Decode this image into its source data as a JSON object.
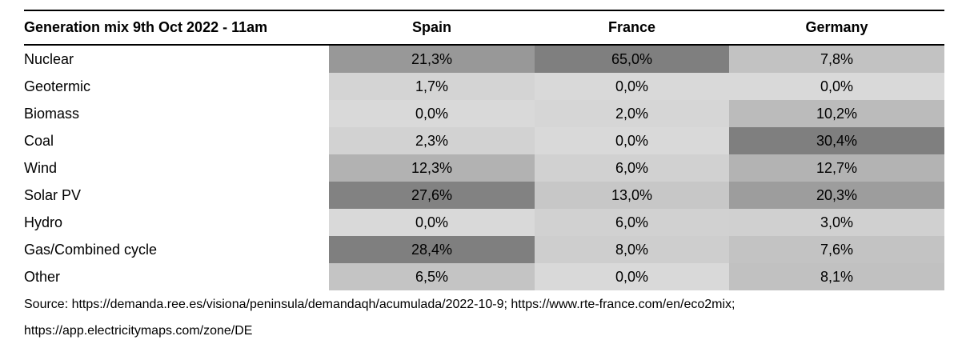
{
  "table": {
    "title": "Generation mix 9th Oct 2022 - 11am",
    "columns": [
      "Spain",
      "France",
      "Germany"
    ],
    "rows": [
      {
        "label": "Nuclear",
        "cells": [
          {
            "text": "21,3%",
            "bg": "#989898"
          },
          {
            "text": "65,0%",
            "bg": "#7F7F7F"
          },
          {
            "text": "7,8%",
            "bg": "#C2C2C2"
          }
        ]
      },
      {
        "label": "Geotermic",
        "cells": [
          {
            "text": "1,7%",
            "bg": "#D4D4D4"
          },
          {
            "text": "0,0%",
            "bg": "#D9D9D9"
          },
          {
            "text": "0,0%",
            "bg": "#D9D9D9"
          }
        ]
      },
      {
        "label": "Biomass",
        "cells": [
          {
            "text": "0,0%",
            "bg": "#D9D9D9"
          },
          {
            "text": "2,0%",
            "bg": "#D6D6D6"
          },
          {
            "text": "10,2%",
            "bg": "#BBBBBB"
          }
        ]
      },
      {
        "label": "Coal",
        "cells": [
          {
            "text": "2,3%",
            "bg": "#D2D2D2"
          },
          {
            "text": "0,0%",
            "bg": "#D9D9D9"
          },
          {
            "text": "30,4%",
            "bg": "#7F7F7F"
          }
        ]
      },
      {
        "label": "Wind",
        "cells": [
          {
            "text": "12,3%",
            "bg": "#B2B2B2"
          },
          {
            "text": "6,0%",
            "bg": "#D1D1D1"
          },
          {
            "text": "12,7%",
            "bg": "#B3B3B3"
          }
        ]
      },
      {
        "label": "Solar PV",
        "cells": [
          {
            "text": "27,6%",
            "bg": "#828282"
          },
          {
            "text": "13,0%",
            "bg": "#C7C7C7"
          },
          {
            "text": "20,3%",
            "bg": "#9D9D9D"
          }
        ]
      },
      {
        "label": "Hydro",
        "cells": [
          {
            "text": "0,0%",
            "bg": "#D9D9D9"
          },
          {
            "text": "6,0%",
            "bg": "#D1D1D1"
          },
          {
            "text": "3,0%",
            "bg": "#D0D0D0"
          }
        ]
      },
      {
        "label": "Gas/Combined cycle",
        "cells": [
          {
            "text": "28,4%",
            "bg": "#7F7F7F"
          },
          {
            "text": "8,0%",
            "bg": "#CECECE"
          },
          {
            "text": "7,6%",
            "bg": "#C3C3C3"
          }
        ]
      },
      {
        "label": "Other",
        "cells": [
          {
            "text": "6,5%",
            "bg": "#C4C4C4"
          },
          {
            "text": "0,0%",
            "bg": "#D9D9D9"
          },
          {
            "text": "8,1%",
            "bg": "#C1C1C1"
          }
        ]
      }
    ]
  },
  "source": {
    "line1": "Source: https://demanda.ree.es/visiona/peninsula/demandaqh/acumulada/2022-10-9; https://www.rte-france.com/en/eco2mix;",
    "line2": "https://app.electricitymaps.com/zone/DE"
  },
  "colors": {
    "heatmap_scale_min": "#D9D9D9",
    "heatmap_scale_max": "#7F7F7F",
    "border": "#000000",
    "background": "#FFFFFF"
  },
  "chart_data": {
    "type": "heatmap",
    "title": "Generation mix 9th Oct 2022 - 11am",
    "categories": [
      "Nuclear",
      "Geotermic",
      "Biomass",
      "Coal",
      "Wind",
      "Solar PV",
      "Hydro",
      "Gas/Combined cycle",
      "Other"
    ],
    "series": [
      {
        "name": "Spain",
        "values": [
          21.3,
          1.7,
          0.0,
          2.3,
          12.3,
          27.6,
          0.0,
          28.4,
          6.5
        ]
      },
      {
        "name": "France",
        "values": [
          65.0,
          0.0,
          2.0,
          0.0,
          6.0,
          13.0,
          6.0,
          8.0,
          0.0
        ]
      },
      {
        "name": "Germany",
        "values": [
          7.8,
          0.0,
          10.2,
          30.4,
          12.7,
          20.3,
          3.0,
          7.6,
          8.1
        ]
      }
    ],
    "unit": "%",
    "value_format": "comma-decimal",
    "color_scale": {
      "min_color": "#D9D9D9",
      "max_color": "#7F7F7F",
      "scope": "per-column",
      "min_value": 0
    },
    "legend": "none",
    "annotations": [
      "Source: https://demanda.ree.es/visiona/peninsula/demandaqh/acumulada/2022-10-9; https://www.rte-france.com/en/eco2mix;",
      "https://app.electricitymaps.com/zone/DE"
    ]
  }
}
